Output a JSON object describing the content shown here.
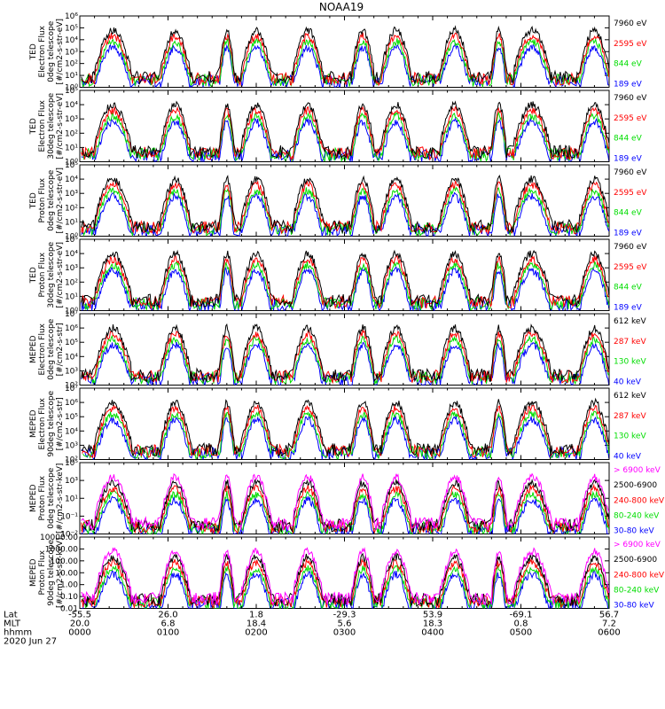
{
  "chart_data": {
    "type": "line",
    "title": "NOAA19",
    "panels": [
      {
        "ylabel_lines": [
          "TED",
          "Electron Flux",
          "0deg telescope",
          "[#/cm2-s-str-eV]"
        ],
        "scale": "log",
        "ylim": [
          1,
          1000000
        ],
        "ytick_labels": [
          "10⁰",
          "10¹",
          "10²",
          "10³",
          "10⁴",
          "10⁵",
          "10⁶"
        ],
        "series": [
          {
            "name": "7960 eV",
            "color": "#000000"
          },
          {
            "name": "2595 eV",
            "color": "#ff0000"
          },
          {
            "name": "844 eV",
            "color": "#00dd00"
          },
          {
            "name": "189 eV",
            "color": "#0000ff"
          }
        ]
      },
      {
        "ylabel_lines": [
          "TED",
          "Electron Flux",
          "30deg telescope",
          "[#/cm2-s-str-eV]"
        ],
        "scale": "log",
        "ylim": [
          1,
          100000
        ],
        "ytick_labels": [
          "10⁰",
          "10¹",
          "10²",
          "10³",
          "10⁴",
          "10⁵"
        ],
        "series": [
          {
            "name": "7960 eV",
            "color": "#000000"
          },
          {
            "name": "2595 eV",
            "color": "#ff0000"
          },
          {
            "name": "844 eV",
            "color": "#00dd00"
          },
          {
            "name": "189 eV",
            "color": "#0000ff"
          }
        ]
      },
      {
        "ylabel_lines": [
          "TED",
          "Proton Flux",
          "0deg telescope",
          "[#/cm2-s-str-eV]"
        ],
        "scale": "log",
        "ylim": [
          1,
          100000
        ],
        "ytick_labels": [
          "10⁰",
          "10¹",
          "10²",
          "10³",
          "10⁴",
          "10⁵"
        ],
        "series": [
          {
            "name": "7960 eV",
            "color": "#000000"
          },
          {
            "name": "2595 eV",
            "color": "#ff0000"
          },
          {
            "name": "844 eV",
            "color": "#00dd00"
          },
          {
            "name": "189 eV",
            "color": "#0000ff"
          }
        ]
      },
      {
        "ylabel_lines": [
          "TED",
          "Proton Flux",
          "30deg telescope",
          "[#/cm2-s-str-eV]"
        ],
        "scale": "log",
        "ylim": [
          1,
          100000
        ],
        "ytick_labels": [
          "10⁰",
          "10¹",
          "10²",
          "10³",
          "10⁴",
          "10⁵"
        ],
        "series": [
          {
            "name": "7960 eV",
            "color": "#000000"
          },
          {
            "name": "2595 eV",
            "color": "#ff0000"
          },
          {
            "name": "844 eV",
            "color": "#00dd00"
          },
          {
            "name": "189 eV",
            "color": "#0000ff"
          }
        ]
      },
      {
        "ylabel_lines": [
          "MEPED",
          "Electron Flux",
          "0deg telescope",
          "[#/cm2-s-str]"
        ],
        "scale": "log",
        "ylim": [
          100,
          10000000
        ],
        "ytick_labels": [
          "10²",
          "10³",
          "10⁴",
          "10⁵",
          "10⁶",
          "10⁷"
        ],
        "series": [
          {
            "name": "612 keV",
            "color": "#000000"
          },
          {
            "name": "287 keV",
            "color": "#ff0000"
          },
          {
            "name": "130 keV",
            "color": "#00dd00"
          },
          {
            "name": "40 keV",
            "color": "#0000ff"
          }
        ]
      },
      {
        "ylabel_lines": [
          "MEPED",
          "Electron Flux",
          "90deg telescope",
          "[#/cm2-s-str]"
        ],
        "scale": "log",
        "ylim": [
          100,
          10000000
        ],
        "ytick_labels": [
          "10²",
          "10³",
          "10⁴",
          "10⁵",
          "10⁶",
          "10⁷"
        ],
        "series": [
          {
            "name": "612 keV",
            "color": "#000000"
          },
          {
            "name": "287 keV",
            "color": "#ff0000"
          },
          {
            "name": "130 keV",
            "color": "#00dd00"
          },
          {
            "name": "40 keV",
            "color": "#0000ff"
          }
        ]
      },
      {
        "ylabel_lines": [
          "MEPED",
          "Proton Flux",
          "0deg telescope",
          "[#/cm2-s-str-keV]"
        ],
        "scale": "log",
        "ylim": [
          0.01,
          100000
        ],
        "ytick_labels": [
          "10⁻²",
          "10⁻¹",
          "10¹",
          "10³",
          "10⁵"
        ],
        "series": [
          {
            "name": "> 6900 keV",
            "color": "#ff00ff"
          },
          {
            "name": "2500-6900",
            "color": "#000000"
          },
          {
            "name": "240-800 keV",
            "color": "#ff0000"
          },
          {
            "name": "80-240 keV",
            "color": "#00dd00"
          },
          {
            "name": "30-80 keV",
            "color": "#0000ff"
          }
        ]
      },
      {
        "ylabel_lines": [
          "MEPED",
          "Proton Flux",
          "90deg telescope",
          "[#/cm2-s-str-keV]"
        ],
        "scale": "log",
        "ylim": [
          0.01,
          10000
        ],
        "ytick_labels": [
          "0.01",
          "0.10",
          "1.00",
          "10.00",
          "100.00",
          "1000.00",
          "10000.00"
        ],
        "series": [
          {
            "name": "> 6900 keV",
            "color": "#ff00ff"
          },
          {
            "name": "2500-6900",
            "color": "#000000"
          },
          {
            "name": "240-800 keV",
            "color": "#ff0000"
          },
          {
            "name": "80-240 keV",
            "color": "#00dd00"
          },
          {
            "name": "30-80 keV",
            "color": "#0000ff"
          }
        ]
      }
    ],
    "x_axis": {
      "row_labels": [
        "Lat",
        "MLT",
        "hhmm"
      ],
      "ticks": [
        {
          "lat": "-55.5",
          "mlt": "20.0",
          "hhmm": "0000"
        },
        {
          "lat": "26.0",
          "mlt": "6.8",
          "hhmm": "0100"
        },
        {
          "lat": "1.8",
          "mlt": "18.4",
          "hhmm": "0200"
        },
        {
          "lat": "-29.3",
          "mlt": "5.6",
          "hhmm": "0300"
        },
        {
          "lat": "53.9",
          "mlt": "18.3",
          "hhmm": "0400"
        },
        {
          "lat": "-69.1",
          "mlt": "0.8",
          "hhmm": "0500"
        },
        {
          "lat": "56.7",
          "mlt": "7.2",
          "hhmm": "0600"
        }
      ],
      "date": "2020 Jun 27"
    },
    "pass_windows_hhmm": [
      [
        "0010",
        "0035"
      ],
      [
        "0055",
        "0115"
      ],
      [
        "0135",
        "0145"
      ],
      [
        "0150",
        "0210"
      ],
      [
        "0225",
        "0245"
      ],
      [
        "0305",
        "0320"
      ],
      [
        "0325",
        "0345"
      ],
      [
        "0405",
        "0425"
      ],
      [
        "0440",
        "0450"
      ],
      [
        "0455",
        "0520"
      ],
      [
        "0540",
        "0600"
      ]
    ]
  }
}
